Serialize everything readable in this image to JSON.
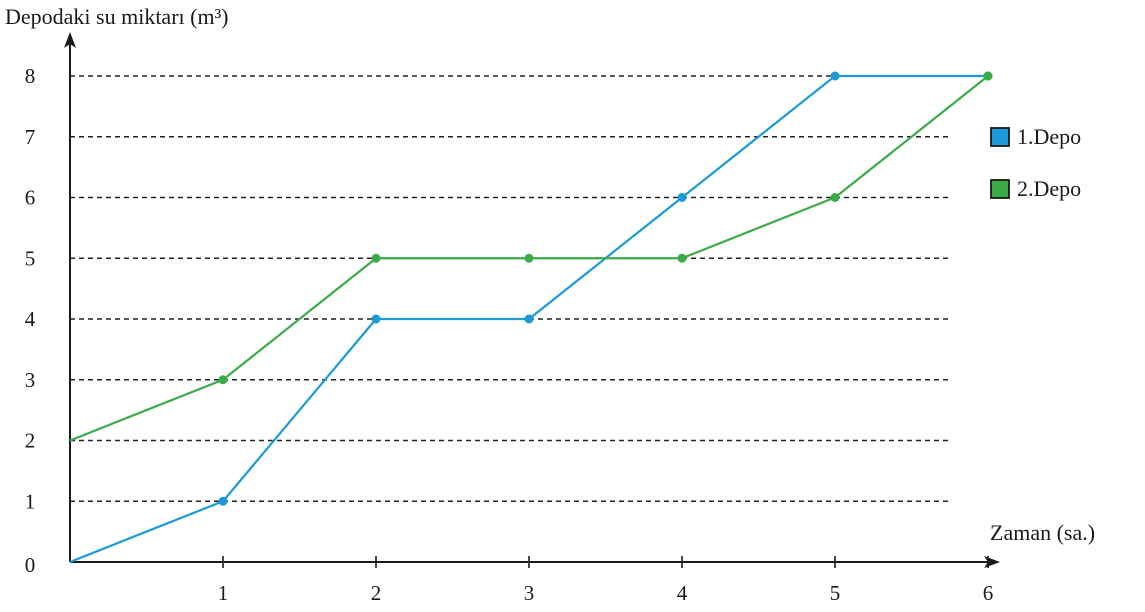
{
  "chart_data": {
    "type": "line",
    "ylabel": "Depodaki su miktarı (m³)",
    "xlabel": "Zaman (sa.)",
    "origin_label": "0",
    "x_ticks": [
      "1",
      "2",
      "3",
      "4",
      "5",
      "6"
    ],
    "y_ticks": [
      "1",
      "2",
      "3",
      "4",
      "5",
      "6",
      "7",
      "8"
    ],
    "xlim": [
      0,
      6
    ],
    "ylim": [
      0,
      8
    ],
    "grid": "dashed horizontal lines",
    "legend_position": "right",
    "series": [
      {
        "name": "1.Depo",
        "color": "#1a9ad6",
        "x": [
          0,
          1,
          2,
          3,
          4,
          5,
          6
        ],
        "y": [
          0,
          1,
          4,
          4,
          6,
          8,
          8
        ]
      },
      {
        "name": "2.Depo",
        "color": "#3bab48",
        "x": [
          0,
          1,
          2,
          3,
          4,
          5,
          6
        ],
        "y": [
          2,
          3,
          5,
          5,
          5,
          6,
          8
        ]
      }
    ]
  }
}
